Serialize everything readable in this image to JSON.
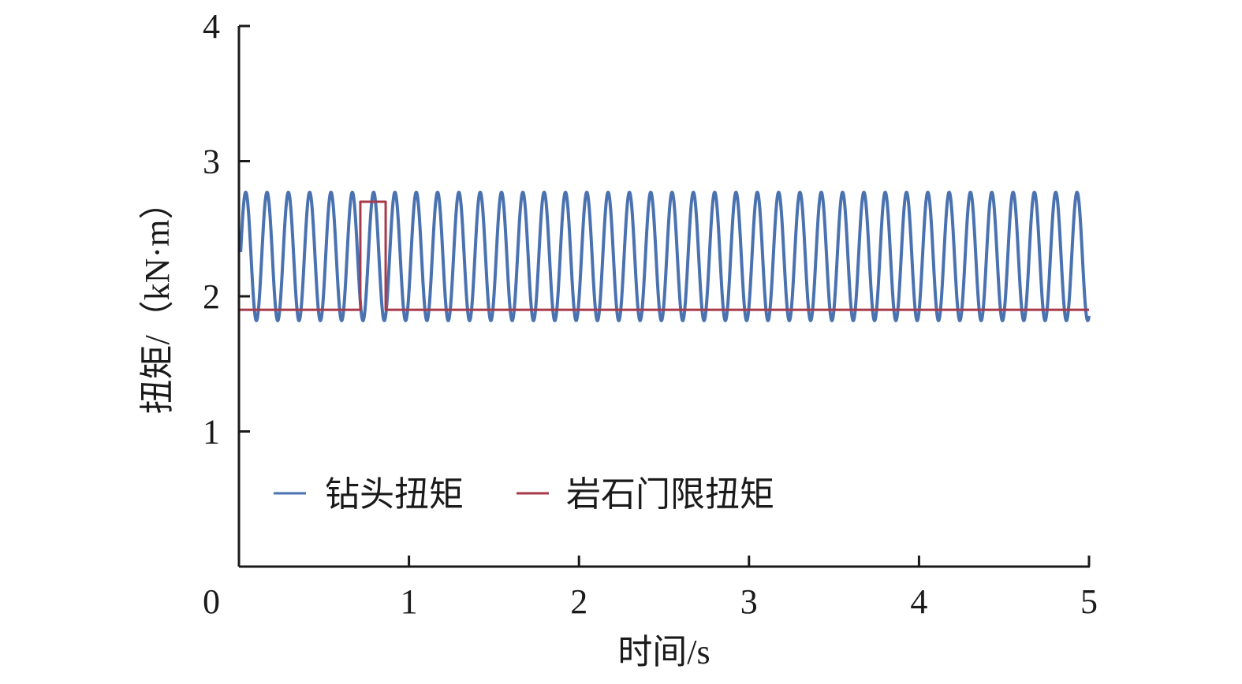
{
  "chart_data": {
    "type": "line",
    "xlabel": "时间/s",
    "ylabel": "扭矩/（kN·m）",
    "xlim": [
      0,
      5
    ],
    "ylim": [
      0,
      4
    ],
    "xticks": [
      "0",
      "1",
      "2",
      "3",
      "4",
      "5"
    ],
    "yticks": [
      "1",
      "2",
      "3",
      "4"
    ],
    "grid": false,
    "legend_placement": "bottom-left",
    "series": [
      {
        "name": "钻头扭矩",
        "color": "#4a72b0",
        "kind": "sinusoid",
        "mean": 2.295,
        "amplitude": 0.475,
        "frequency_hz": 7.976,
        "first_peak_t": 0.04,
        "t_range": [
          0.01,
          5.0
        ]
      },
      {
        "name": "岩石门限扭矩",
        "color": "#a63a4a",
        "kind": "step",
        "points": [
          [
            0,
            1.9
          ],
          [
            0.714,
            1.9
          ],
          [
            0.714,
            2.7
          ],
          [
            0.863,
            2.7
          ],
          [
            0.863,
            1.9
          ],
          [
            5.0,
            1.9
          ]
        ]
      }
    ]
  }
}
